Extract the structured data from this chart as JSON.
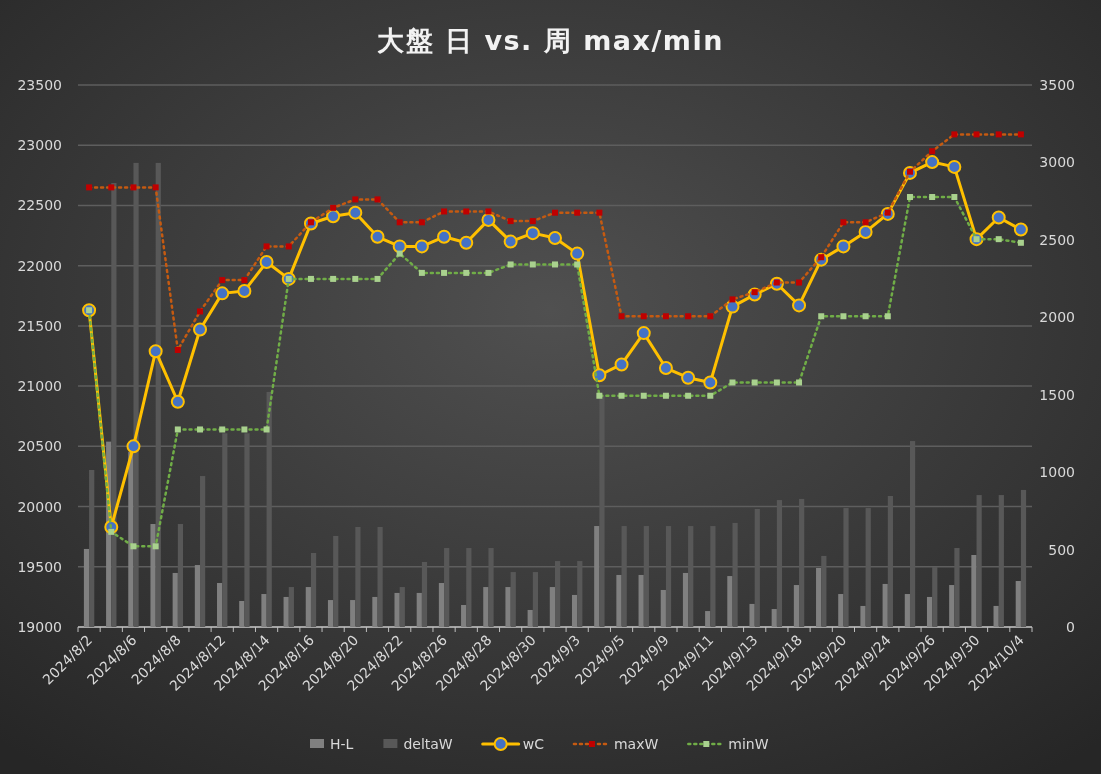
{
  "chart_data": {
    "type": "line",
    "title": "大盤 日 vs. 周 max/min",
    "categories": [
      "2024/8/2",
      null,
      "2024/8/6",
      null,
      "2024/8/8",
      null,
      "2024/8/12",
      null,
      "2024/8/14",
      null,
      "2024/8/16",
      null,
      "2024/8/20",
      null,
      "2024/8/22",
      null,
      "2024/8/26",
      null,
      "2024/8/28",
      null,
      "2024/8/30",
      null,
      "2024/9/3",
      null,
      "2024/9/5",
      null,
      "2024/9/9",
      null,
      "2024/9/11",
      null,
      "2024/9/13",
      null,
      "2024/9/18",
      null,
      "2024/9/20",
      null,
      "2024/9/24",
      null,
      "2024/9/26",
      null,
      "2024/9/30",
      null,
      "2024/10/4"
    ],
    "series": [
      {
        "name": "H-L",
        "type": "bar",
        "axis": "y2",
        "color": "#808080",
        "values": [
          504,
          1197,
          1130,
          665,
          349,
          400,
          284,
          168,
          213,
          194,
          258,
          174,
          174,
          194,
          220,
          220,
          284,
          142,
          258,
          258,
          110,
          258,
          207,
          652,
          336,
          336,
          239,
          349,
          103,
          329,
          149,
          116,
          271,
          381,
          213,
          136,
          278,
          213,
          194,
          271,
          465,
          136,
          297
        ]
      },
      {
        "name": "deltaW",
        "type": "bar",
        "axis": "y2",
        "color": "#585858",
        "values": [
          1014,
          2867,
          2997,
          2997,
          665,
          975,
          1251,
          1251,
          1518,
          258,
          478,
          588,
          646,
          646,
          258,
          420,
          510,
          510,
          510,
          355,
          355,
          426,
          426,
          1494,
          652,
          652,
          652,
          652,
          652,
          672,
          762,
          820,
          827,
          459,
          768,
          768,
          846,
          1201,
          387,
          510,
          852,
          852,
          885
        ]
      },
      {
        "name": "wC",
        "color": "#ffc000",
        "marker": "circle",
        "line_style": "solid",
        "values": [
          21630,
          19830,
          20500,
          21290,
          20870,
          21470,
          21770,
          21790,
          22030,
          21890,
          22350,
          22410,
          22440,
          22240,
          22160,
          22160,
          22240,
          22190,
          22380,
          22200,
          22270,
          22230,
          22100,
          21090,
          21180,
          21440,
          21150,
          21070,
          21030,
          21660,
          21760,
          21850,
          21670,
          22050,
          22160,
          22280,
          22430,
          22770,
          22860,
          22820,
          22220,
          22400,
          22300
        ]
      },
      {
        "name": "maxW",
        "color": "#c55a11",
        "marker": "square",
        "line_style": "dotted",
        "values": [
          22650,
          22650,
          22650,
          22650,
          21300,
          21620,
          21880,
          21880,
          22160,
          22160,
          22360,
          22480,
          22550,
          22550,
          22360,
          22360,
          22450,
          22450,
          22450,
          22370,
          22370,
          22440,
          22440,
          22440,
          21580,
          21580,
          21580,
          21580,
          21580,
          21720,
          21780,
          21860,
          21860,
          22070,
          22360,
          22360,
          22440,
          22780,
          22950,
          23090,
          23090,
          23090,
          23090
        ]
      },
      {
        "name": "minW",
        "color": "#70ad47",
        "marker": "square",
        "line_style": "dotted",
        "values": [
          21630,
          19790,
          19670,
          19670,
          20640,
          20640,
          20640,
          20640,
          20640,
          21890,
          21890,
          21890,
          21890,
          21890,
          22100,
          21940,
          21940,
          21940,
          21940,
          22010,
          22010,
          22010,
          22010,
          20920,
          20920,
          20920,
          20920,
          20920,
          20920,
          21030,
          21030,
          21030,
          21030,
          21580,
          21580,
          21580,
          21580,
          22570,
          22570,
          22570,
          22220,
          22220,
          22190
        ]
      }
    ],
    "ylim": [
      19000,
      23500
    ],
    "yticks": [
      19000,
      19500,
      20000,
      20500,
      21000,
      21500,
      22000,
      22500,
      23000,
      23500
    ],
    "y2lim": [
      0,
      3500
    ],
    "y2ticks": [
      0,
      500,
      1000,
      1500,
      2000,
      2500,
      3000,
      3500
    ],
    "grid": "y",
    "legend": "bottom"
  }
}
